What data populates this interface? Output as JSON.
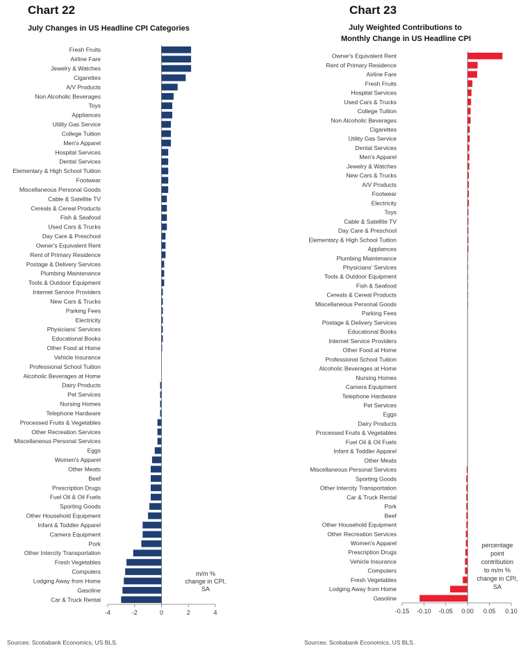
{
  "chart_data": [
    {
      "type": "bar",
      "orientation": "horizontal",
      "chart_number": "Chart 22",
      "title": "July  Changes in US Headline CPI Categories",
      "note": [
        "m/m %",
        "change in CPI,",
        "SA"
      ],
      "source": "Sources: Scotiabank Economics, US BLS.",
      "xlim": [
        -4,
        4
      ],
      "xticks": [
        -4,
        -2,
        0,
        2,
        4
      ],
      "bar_color": "#1f3f73",
      "categories": [
        "Fresh Fruits",
        "Airline Fare",
        "Jewelry & Watches",
        "Cigarettes",
        "A/V Products",
        "Non Alcoholic Beverages",
        "Toys",
        "Appliances",
        "Utility Gas Service",
        "College Tuition",
        "Men's Apparel",
        "Hospital Services",
        "Dental Services",
        "Elementary & High School Tuition",
        "Footwear",
        "Miscellaneous Personal Goods",
        "Cable & Satellite TV",
        "Cereals & Cereal Products",
        "Fish & Seafood",
        "Used Cars & Trucks",
        "Day Care & Preschool",
        "Owner's Equivalent Rent",
        "Rent of Primary Residence",
        "Postage & Delivery Services",
        "Plumbing Maintenance",
        "Tools & Outdoor Equipment",
        "Internet Service Providers",
        "New Cars & Trucks",
        "Parking Fees",
        "Electricity",
        "Physicians' Services",
        "Educational Books",
        "Other Food at Home",
        "Vehicle Insurance",
        "Professional School Tuition",
        "Alcoholic Beverages at Home",
        "Dairy Products",
        "Pet Services",
        "Nursing Homes",
        "Telephone Hardware",
        "Processed Fruits & Vegetables",
        "Other Recreation Services",
        "Miscellaneous Personal Services",
        "Eggs",
        "Women's Apparel",
        "Other Meats",
        "Beef",
        "Prescription Drugs",
        "Fuel Oil & Oil Fuels",
        "Sporting Goods",
        "Other Household Equipment",
        "Infant & Toddler Apparel",
        "Camera Equipment",
        "Pork",
        "Other Intercity Transportation",
        "Fresh Vegetables",
        "Computers",
        "Lodging Away from Home",
        "Gasoline",
        "Car & Truck Rental"
      ],
      "values": [
        2.2,
        2.2,
        2.2,
        1.8,
        1.2,
        0.9,
        0.8,
        0.8,
        0.7,
        0.7,
        0.7,
        0.5,
        0.5,
        0.5,
        0.5,
        0.5,
        0.4,
        0.4,
        0.4,
        0.4,
        0.3,
        0.3,
        0.3,
        0.2,
        0.2,
        0.2,
        0.1,
        0.1,
        0.1,
        0.1,
        0.1,
        0.1,
        0.05,
        0.0,
        0.0,
        0.0,
        -0.1,
        -0.1,
        -0.1,
        -0.1,
        -0.3,
        -0.3,
        -0.3,
        -0.5,
        -0.7,
        -0.8,
        -0.8,
        -0.8,
        -0.8,
        -0.9,
        -1.0,
        -1.4,
        -1.4,
        -1.5,
        -2.1,
        -2.6,
        -2.7,
        -2.8,
        -2.9,
        -3.0
      ]
    },
    {
      "type": "bar",
      "orientation": "horizontal",
      "chart_number": "Chart 23",
      "title": [
        "July  Weighted Contributions to",
        "Monthly Change in US Headline CPI"
      ],
      "note": [
        "percentage",
        "point",
        "contribution",
        "to m/m %",
        "change in CPI,",
        "SA"
      ],
      "source": "Sources: Scotiabank Economics, US BLS.",
      "xlim": [
        -0.15,
        0.1
      ],
      "xticks": [
        "-0.15",
        "-0.10",
        "-0.05",
        "0.00",
        "0.05",
        "0.10"
      ],
      "bar_color": "#e8202f",
      "categories": [
        "Owner's Equivalent Rent",
        "Rent of Primary Residence",
        "Airline Fare",
        "Fresh Fruits",
        "Hospital Services",
        "Used Cars & Trucks",
        "College Tuition",
        "Non Alcoholic Beverages",
        "Cigarettes",
        "Utility Gas Service",
        "Dental Services",
        "Men's Apparel",
        "Jewelry & Watches",
        "New Cars & Trucks",
        "A/V Products",
        "Footwear",
        "Electricity",
        "Toys",
        "Cable & Satellite TV",
        "Day Care & Preschool",
        "Elementary & High School Tuition",
        "Appliances",
        "Plumbing Maintenance",
        "Physicians' Services",
        "Tools & Outdoor Equipment",
        "Fish & Seafood",
        "Cereals & Cereal Products",
        "Miscellaneous Personal Goods",
        "Parking Fees",
        "Postage & Delivery Services",
        "Educational Books",
        "Internet Service Providers",
        "Other Food at Home",
        "Professional School Tuition",
        "Alcoholic Beverages at Home",
        "Nursing Homes",
        "Camera Equipment",
        "Telephone Hardware",
        "Pet Services",
        "Eggs",
        "Dairy Products",
        "Processed Fruits & Vegetables",
        "Fuel Oil & Oil Fuels",
        "Infant & Toddler Apparel",
        "Other Meats",
        "Miscellaneous Personal Services",
        "Sporting Goods",
        "Other Intercity Transportation",
        "Car & Truck Rental",
        "Pork",
        "Beef",
        "Other Household Equipment",
        "Other Recreation Services",
        "Women's Apparel",
        "Prescription Drugs",
        "Vehicle Insurance",
        "Computers",
        "Fresh Vegetables",
        "Lodging Away from Home",
        "Gasoline"
      ],
      "values": [
        0.08,
        0.023,
        0.022,
        0.011,
        0.009,
        0.008,
        0.007,
        0.007,
        0.005,
        0.005,
        0.004,
        0.004,
        0.004,
        0.003,
        0.003,
        0.003,
        0.003,
        0.002,
        0.002,
        0.002,
        0.002,
        0.002,
        0.001,
        0.001,
        0.001,
        0.001,
        0.001,
        0.001,
        0.0,
        0.0,
        0.0,
        0.0,
        0.0,
        0.0,
        0.0,
        0.0,
        0.0,
        0.0,
        0.0,
        0.0,
        0.0,
        0.0,
        0.0,
        0.0,
        0.0,
        -0.002,
        -0.003,
        -0.003,
        -0.003,
        -0.003,
        -0.003,
        -0.003,
        -0.004,
        -0.004,
        -0.005,
        -0.006,
        -0.006,
        -0.011,
        -0.04,
        -0.11
      ]
    }
  ]
}
